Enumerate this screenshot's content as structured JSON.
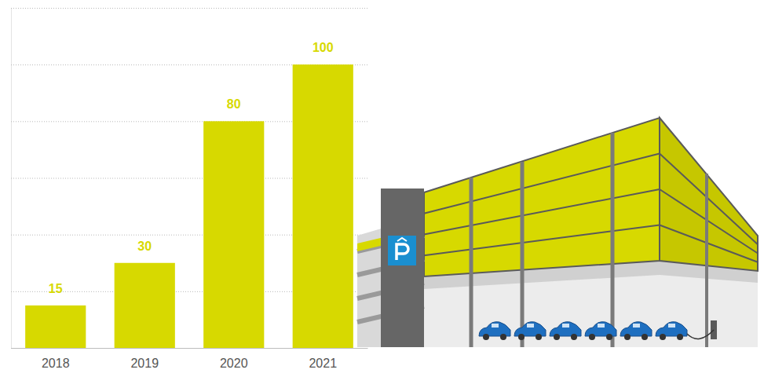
{
  "chart_data": {
    "type": "bar",
    "categories": [
      "2018",
      "2019",
      "2020",
      "2021"
    ],
    "values": [
      15,
      30,
      80,
      100
    ],
    "color": "#d7d900",
    "ylim": [
      0,
      120
    ],
    "yticks": [
      0,
      20,
      40,
      60,
      80,
      100,
      120
    ],
    "grid": true,
    "data_labels": true,
    "tick_labels": "x"
  }
}
